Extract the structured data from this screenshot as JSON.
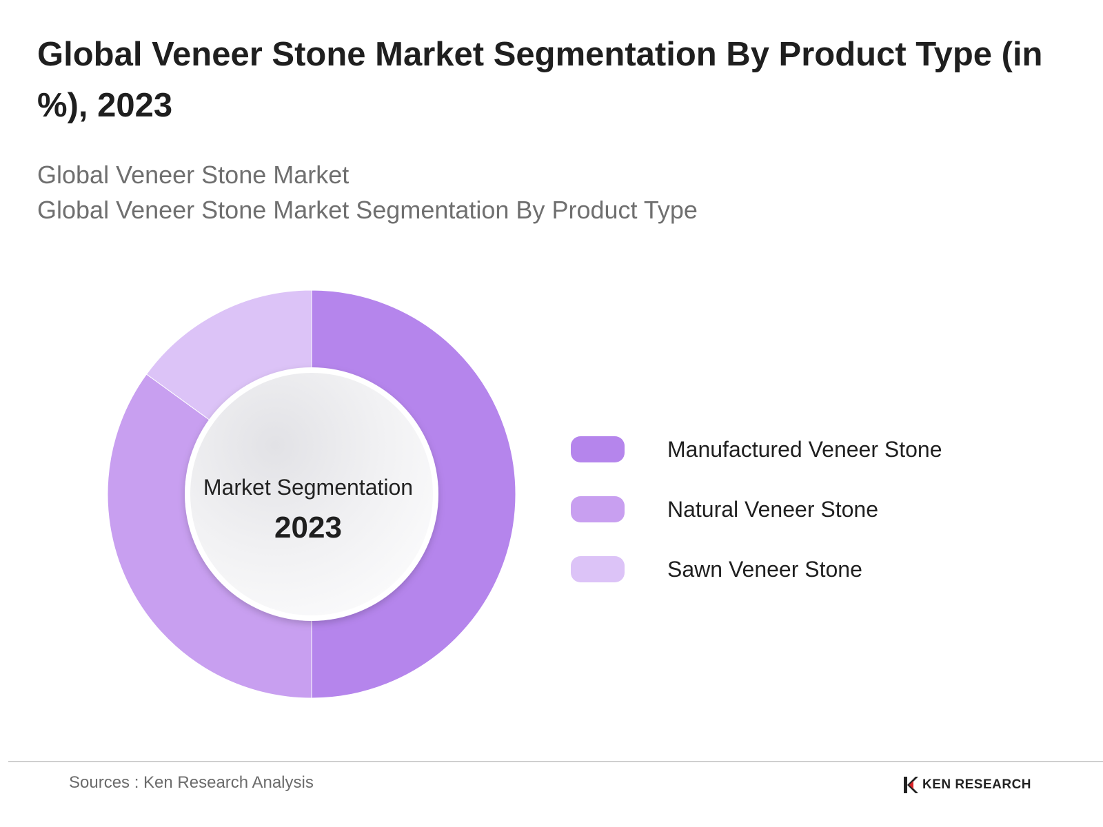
{
  "header": {
    "title": "Global Veneer Stone Market Segmentation By Product Type (in %), 2023",
    "subtitle_line1": "Global Veneer Stone Market",
    "subtitle_line2": "Global Veneer Stone Market Segmentation By Product Type"
  },
  "chart_data": {
    "type": "pie",
    "variant": "donut",
    "center_label": "Market Segmentation",
    "center_year": "2023",
    "categories": [
      "Manufactured Veneer Stone",
      "Natural Veneer Stone",
      "Sawn Veneer Stone"
    ],
    "values": [
      50,
      35,
      15
    ],
    "colors": [
      "#b585ec",
      "#c89ff0",
      "#dcc3f7"
    ],
    "legend_position": "right",
    "start_angle_deg": 0,
    "direction": "clockwise"
  },
  "footer": {
    "source": "Sources : Ken Research Analysis",
    "brand": "KEN RESEARCH"
  },
  "icons": {
    "brand_logo": "ken-research-logo-icon"
  }
}
